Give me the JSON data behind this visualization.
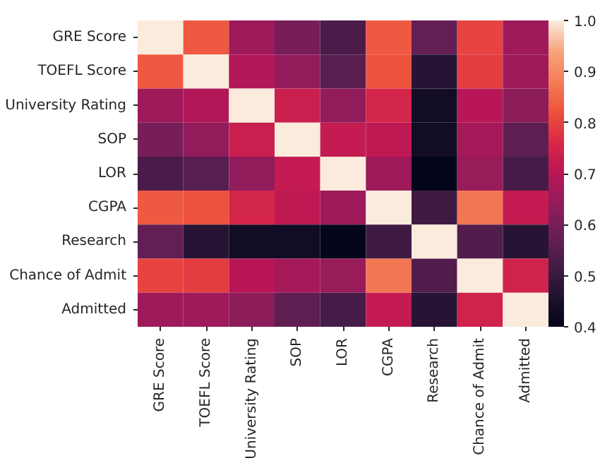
{
  "chart_data": {
    "type": "heatmap",
    "categories": [
      "GRE Score",
      "TOEFL Score",
      "University Rating",
      "SOP",
      "LOR",
      "CGPA",
      "Research",
      "Chance of Admit",
      "Admitted"
    ],
    "y_categories": [
      "GRE Score",
      "TOEFL Score",
      "University Rating",
      "SOP",
      "LOR",
      "CGPA",
      "Research",
      "Chance of Admit",
      "Admitted"
    ],
    "cells": [
      [
        1.0,
        0.83,
        0.66,
        0.6,
        0.53,
        0.83,
        0.57,
        0.8,
        0.66
      ],
      [
        0.83,
        1.0,
        0.69,
        0.64,
        0.55,
        0.82,
        0.47,
        0.79,
        0.66
      ],
      [
        0.66,
        0.69,
        1.0,
        0.73,
        0.64,
        0.75,
        0.43,
        0.7,
        0.63
      ],
      [
        0.6,
        0.64,
        0.73,
        1.0,
        0.72,
        0.71,
        0.43,
        0.67,
        0.56
      ],
      [
        0.53,
        0.55,
        0.64,
        0.72,
        1.0,
        0.66,
        0.4,
        0.65,
        0.52
      ],
      [
        0.83,
        0.82,
        0.75,
        0.71,
        0.66,
        1.0,
        0.51,
        0.87,
        0.72
      ],
      [
        0.57,
        0.47,
        0.43,
        0.43,
        0.4,
        0.51,
        1.0,
        0.54,
        0.47
      ],
      [
        0.8,
        0.79,
        0.7,
        0.67,
        0.65,
        0.87,
        0.54,
        1.0,
        0.74
      ],
      [
        0.66,
        0.66,
        0.63,
        0.56,
        0.52,
        0.72,
        0.47,
        0.74,
        1.0
      ]
    ],
    "clim": [
      0.4,
      1.0
    ],
    "cticks": [
      {
        "value": 0.4,
        "label": "0.4"
      },
      {
        "value": 0.5,
        "label": "0.5"
      },
      {
        "value": 0.6,
        "label": "0.6"
      },
      {
        "value": 0.7,
        "label": "0.7"
      },
      {
        "value": 0.8,
        "label": "0.8"
      },
      {
        "value": 0.9,
        "label": "0.9"
      },
      {
        "value": 1.0,
        "label": "1.0"
      }
    ],
    "grid": false
  }
}
